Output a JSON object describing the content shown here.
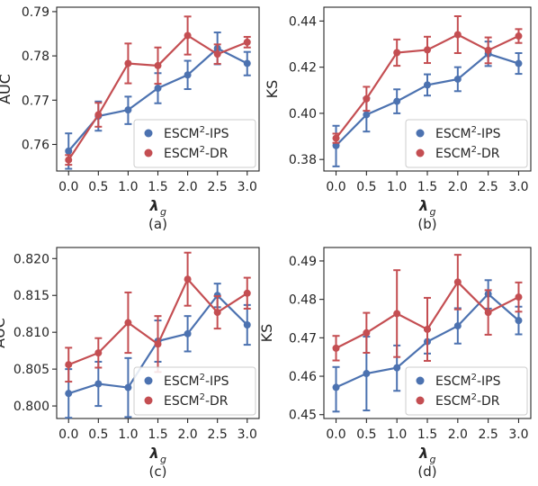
{
  "chart_data": [
    {
      "type": "line",
      "caption": "(a)",
      "xlabel": "λ",
      "xlabel_sub": "g",
      "ylabel": "AUC",
      "ylim": [
        0.754,
        0.791
      ],
      "yticks": [
        0.76,
        0.77,
        0.78,
        0.79
      ],
      "ytick_labels": [
        "0.76",
        "0.77",
        "0.78",
        "0.79"
      ],
      "x": [
        0.0,
        0.5,
        1.0,
        1.5,
        2.0,
        2.5,
        3.0
      ],
      "xtick_labels": [
        "0.0",
        "0.5",
        "1.0",
        "1.5",
        "2.0",
        "2.5",
        "3.0"
      ],
      "legend_position": "lower-right",
      "series": [
        {
          "name": "ESCM²-IPS",
          "name_base": "ESCM",
          "name_sup": "2",
          "name_tail": "-IPS",
          "color": "#4c72b0",
          "values": [
            0.7585,
            0.7664,
            0.7678,
            0.7727,
            0.7757,
            0.7817,
            0.7783
          ],
          "err_low": [
            0.004,
            0.0033,
            0.0032,
            0.0034,
            0.0032,
            0.0036,
            0.0027
          ],
          "err_high": [
            0.004,
            0.0033,
            0.003,
            0.0034,
            0.0032,
            0.0036,
            0.0026
          ]
        },
        {
          "name": "ESCM²-DR",
          "name_base": "ESCM",
          "name_sup": "2",
          "name_tail": "-DR",
          "color": "#c44e52",
          "values": [
            0.7565,
            0.7667,
            0.7783,
            0.7778,
            0.7846,
            0.7804,
            0.7831
          ],
          "err_low": [
            0.0011,
            0.0027,
            0.0045,
            0.0041,
            0.0043,
            0.0022,
            0.0012
          ],
          "err_high": [
            0.0011,
            0.0027,
            0.0045,
            0.0041,
            0.0043,
            0.0022,
            0.0012
          ]
        }
      ]
    },
    {
      "type": "line",
      "caption": "(b)",
      "xlabel": "λ",
      "xlabel_sub": "g",
      "ylabel": "KS",
      "ylim": [
        0.375,
        0.446
      ],
      "yticks": [
        0.38,
        0.4,
        0.42,
        0.44
      ],
      "ytick_labels": [
        "0.38",
        "0.40",
        "0.42",
        "0.44"
      ],
      "x": [
        0.0,
        0.5,
        1.0,
        1.5,
        2.0,
        2.5,
        3.0
      ],
      "xtick_labels": [
        "0.0",
        "0.5",
        "1.0",
        "1.5",
        "2.0",
        "2.5",
        "3.0"
      ],
      "legend_position": "lower-right",
      "series": [
        {
          "name": "ESCM²-IPS",
          "name_base": "ESCM",
          "name_sup": "2",
          "name_tail": "-IPS",
          "color": "#4c72b0",
          "values": [
            0.386,
            0.3994,
            0.4052,
            0.4123,
            0.4148,
            0.4258,
            0.4216
          ],
          "err_low": [
            0.009,
            0.0073,
            0.0052,
            0.0046,
            0.0052,
            0.0053,
            0.0045
          ],
          "err_high": [
            0.0086,
            0.0073,
            0.0052,
            0.0046,
            0.0052,
            0.0053,
            0.0045
          ]
        },
        {
          "name": "ESCM²-DR",
          "name_base": "ESCM",
          "name_sup": "2",
          "name_tail": "-DR",
          "color": "#c44e52",
          "values": [
            0.3892,
            0.4063,
            0.4263,
            0.4275,
            0.4341,
            0.4273,
            0.4335
          ],
          "err_low": [
            0.002,
            0.0052,
            0.0057,
            0.0057,
            0.008,
            0.0056,
            0.003
          ],
          "err_high": [
            0.002,
            0.0052,
            0.0057,
            0.0057,
            0.008,
            0.0056,
            0.003
          ]
        }
      ]
    },
    {
      "type": "line",
      "caption": "(c)",
      "xlabel": "λ",
      "xlabel_sub": "g",
      "ylabel": "AUC",
      "ylim": [
        0.7983,
        0.8215
      ],
      "yticks": [
        0.8,
        0.805,
        0.81,
        0.815,
        0.82
      ],
      "ytick_labels": [
        "0.800",
        "0.805",
        "0.810",
        "0.815",
        "0.820"
      ],
      "x": [
        0.0,
        0.5,
        1.0,
        1.5,
        2.0,
        2.5,
        3.0
      ],
      "xtick_labels": [
        "0.0",
        "0.5",
        "1.0",
        "1.5",
        "2.0",
        "2.5",
        "3.0"
      ],
      "legend_position": "lower-right",
      "series": [
        {
          "name": "ESCM²-IPS",
          "name_base": "ESCM",
          "name_sup": "2",
          "name_tail": "-IPS",
          "color": "#4c72b0",
          "values": [
            0.8017,
            0.803,
            0.8025,
            0.8088,
            0.8098,
            0.815,
            0.811
          ],
          "err_low": [
            0.0033,
            0.003,
            0.004,
            0.0028,
            0.0024,
            0.0016,
            0.0027
          ],
          "err_high": [
            0.0033,
            0.003,
            0.004,
            0.0028,
            0.0024,
            0.0016,
            0.0027
          ]
        },
        {
          "name": "ESCM²-DR",
          "name_base": "ESCM",
          "name_sup": "2",
          "name_tail": "-DR",
          "color": "#c44e52",
          "values": [
            0.8056,
            0.8072,
            0.8113,
            0.8084,
            0.8172,
            0.8127,
            0.8153
          ],
          "err_low": [
            0.0023,
            0.002,
            0.0041,
            0.0038,
            0.0036,
            0.0022,
            0.0021
          ],
          "err_high": [
            0.0023,
            0.002,
            0.0041,
            0.0038,
            0.0036,
            0.0022,
            0.0021
          ]
        }
      ]
    },
    {
      "type": "line",
      "caption": "(d)",
      "xlabel": "λ",
      "xlabel_sub": "g",
      "ylabel": "KS",
      "ylim": [
        0.449,
        0.4935
      ],
      "yticks": [
        0.45,
        0.46,
        0.47,
        0.48,
        0.49
      ],
      "ytick_labels": [
        "0.45",
        "0.46",
        "0.47",
        "0.48",
        "0.49"
      ],
      "x": [
        0.0,
        0.5,
        1.0,
        1.5,
        2.0,
        2.5,
        3.0
      ],
      "xtick_labels": [
        "0.0",
        "0.5",
        "1.0",
        "1.5",
        "2.0",
        "2.5",
        "3.0"
      ],
      "legend_position": "lower-right",
      "series": [
        {
          "name": "ESCM²-IPS",
          "name_base": "ESCM",
          "name_sup": "2",
          "name_tail": "-IPS",
          "color": "#4c72b0",
          "values": [
            0.4571,
            0.4607,
            0.4622,
            0.469,
            0.4731,
            0.4814,
            0.4745
          ],
          "err_low": [
            0.0063,
            0.0096,
            0.006,
            0.0031,
            0.0046,
            0.0038,
            0.0036
          ],
          "err_high": [
            0.0053,
            0.0096,
            0.0058,
            0.0031,
            0.0046,
            0.0036,
            0.0036
          ]
        },
        {
          "name": "ESCM²-DR",
          "name_base": "ESCM",
          "name_sup": "2",
          "name_tail": "-DR",
          "color": "#c44e52",
          "values": [
            0.4673,
            0.4713,
            0.4763,
            0.4722,
            0.4845,
            0.4766,
            0.4806
          ],
          "err_low": [
            0.0032,
            0.0052,
            0.0113,
            0.0082,
            0.0071,
            0.0058,
            0.0038
          ],
          "err_high": [
            0.0032,
            0.0052,
            0.0113,
            0.0082,
            0.0071,
            0.0058,
            0.0038
          ]
        }
      ]
    }
  ]
}
